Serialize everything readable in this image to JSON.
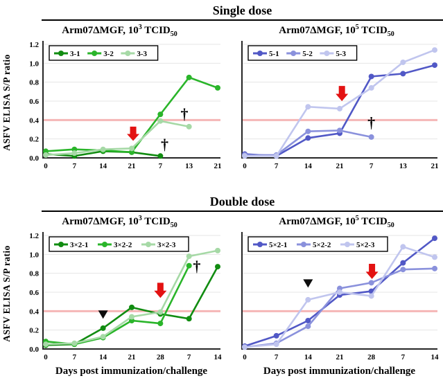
{
  "figure": {
    "y_axis_label": "ASFV ELISA S/P ratio",
    "x_axis_label": "Days post immunization/challenge",
    "colors": {
      "grid": "#e4e4e4",
      "axis": "#262626",
      "cutoff_line": "#f5b6b6",
      "arrow_red": "#e31212",
      "marker_black": "#0d0d0d"
    }
  },
  "sections": [
    {
      "header": "Single dose"
    },
    {
      "header": "Double dose"
    }
  ],
  "chart_data": [
    {
      "id": "single-low",
      "type": "line",
      "title_parts": {
        "base": "Arm07ΔMGF, 10",
        "exponent": "3",
        "mid": " TCID",
        "sub": "50"
      },
      "x_tick_labels": [
        "0",
        "7",
        "14",
        "21",
        "7",
        "13",
        "21"
      ],
      "y_tick_labels": [
        "0.0",
        "0.2",
        "0.4",
        "0.6",
        "0.8",
        "1.0",
        "1.2"
      ],
      "show_y_ticks": true,
      "ylim": [
        0,
        1.2
      ],
      "cutoff": 0.4,
      "legend_position": "top-left",
      "series": [
        {
          "name": "3-1",
          "color": "#118c11",
          "values": [
            0.04,
            0.02,
            0.07,
            0.06,
            0.02,
            null,
            null
          ]
        },
        {
          "name": "3-2",
          "color": "#2ab52a",
          "values": [
            0.07,
            0.09,
            0.08,
            0.06,
            0.46,
            0.85,
            0.74
          ]
        },
        {
          "name": "3-3",
          "color": "#a6d9a6",
          "values": [
            0.03,
            0.05,
            0.09,
            0.1,
            0.39,
            0.33,
            null
          ]
        }
      ],
      "annotations": [
        {
          "type": "arrow",
          "x": 3.05,
          "y_tip": 0.18,
          "y_top": 0.33
        },
        {
          "type": "dagger",
          "x": 4.15,
          "y": 0.14
        },
        {
          "type": "dagger",
          "x": 4.84,
          "y": 0.46
        }
      ]
    },
    {
      "id": "single-high",
      "type": "line",
      "title_parts": {
        "base": "Arm07ΔMGF, 10",
        "exponent": "5",
        "mid": " TCID",
        "sub": "50"
      },
      "x_tick_labels": [
        "0",
        "7",
        "14",
        "21",
        "7",
        "13",
        "21"
      ],
      "y_tick_labels": [
        "0.0",
        "0.2",
        "0.4",
        "0.6",
        "0.8",
        "1.0",
        "1.2"
      ],
      "show_y_ticks": false,
      "ylim": [
        0,
        1.2
      ],
      "cutoff": 0.4,
      "legend_position": "top-left",
      "series": [
        {
          "name": "5-1",
          "color": "#5158c6",
          "values": [
            0.04,
            0.02,
            0.21,
            0.26,
            0.86,
            0.89,
            0.98
          ]
        },
        {
          "name": "5-2",
          "color": "#8a91dc",
          "values": [
            0.03,
            0.03,
            0.28,
            0.29,
            0.22,
            null,
            null
          ]
        },
        {
          "name": "5-3",
          "color": "#c0c5ee",
          "values": [
            0.02,
            0.02,
            0.54,
            0.52,
            0.74,
            1.01,
            1.14
          ]
        }
      ],
      "annotations": [
        {
          "type": "arrow",
          "x": 3.07,
          "y_tip": 0.6,
          "y_top": 0.76
        },
        {
          "type": "dagger",
          "x": 4.0,
          "y": 0.37
        }
      ]
    },
    {
      "id": "double-low",
      "type": "line",
      "title_parts": {
        "base": "Arm07ΔMGF, 10",
        "exponent": "3",
        "mid": " TCID",
        "sub": "50"
      },
      "x_tick_labels": [
        "0",
        "7",
        "14",
        "21",
        "28",
        "7",
        "14"
      ],
      "y_tick_labels": [
        "0.0",
        "0.2",
        "0.4",
        "0.6",
        "0.8",
        "1.0",
        "1.2"
      ],
      "show_y_ticks": true,
      "ylim": [
        0,
        1.2
      ],
      "cutoff": 0.4,
      "legend_position": "top-left",
      "series": [
        {
          "name": "3×2-1",
          "color": "#118c11",
          "values": [
            0.04,
            0.05,
            0.22,
            0.44,
            0.37,
            0.32,
            0.87
          ]
        },
        {
          "name": "3×2-2",
          "color": "#2ab52a",
          "values": [
            0.08,
            0.05,
            0.12,
            0.3,
            0.27,
            0.88,
            null
          ]
        },
        {
          "name": "3×2-3",
          "color": "#a6d9a6",
          "values": [
            0.05,
            0.06,
            0.13,
            0.34,
            0.39,
            0.98,
            1.04
          ]
        }
      ],
      "annotations": [
        {
          "type": "triangle",
          "x": 2,
          "y": 0.37
        },
        {
          "type": "arrow",
          "x": 4.0,
          "y_tip": 0.54,
          "y_top": 0.7
        },
        {
          "type": "dagger",
          "x": 5.27,
          "y": 0.87
        }
      ]
    },
    {
      "id": "double-high",
      "type": "line",
      "title_parts": {
        "base": "Arm07ΔMGF, 10",
        "exponent": "5",
        "mid": " TCID",
        "sub": "50"
      },
      "x_tick_labels": [
        "0",
        "7",
        "14",
        "21",
        "28",
        "7",
        "14"
      ],
      "y_tick_labels": [
        "0.0",
        "0.2",
        "0.4",
        "0.6",
        "0.8",
        "1.0",
        "1.2"
      ],
      "show_y_ticks": false,
      "ylim": [
        0,
        1.2
      ],
      "cutoff": 0.4,
      "legend_position": "top-left",
      "series": [
        {
          "name": "5×2-1",
          "color": "#5158c6",
          "values": [
            0.03,
            0.14,
            0.3,
            0.57,
            0.61,
            0.91,
            1.17
          ]
        },
        {
          "name": "5×2-2",
          "color": "#8a91dc",
          "values": [
            0.02,
            0.06,
            0.24,
            0.64,
            0.7,
            0.84,
            0.85
          ]
        },
        {
          "name": "5×2-3",
          "color": "#c0c5ee",
          "values": [
            0.02,
            0.05,
            0.52,
            0.6,
            0.56,
            1.08,
            0.97
          ]
        }
      ],
      "annotations": [
        {
          "type": "triangle",
          "x": 2,
          "y": 0.7
        },
        {
          "type": "arrow",
          "x": 4.02,
          "y_tip": 0.74,
          "y_top": 0.9
        }
      ]
    }
  ]
}
